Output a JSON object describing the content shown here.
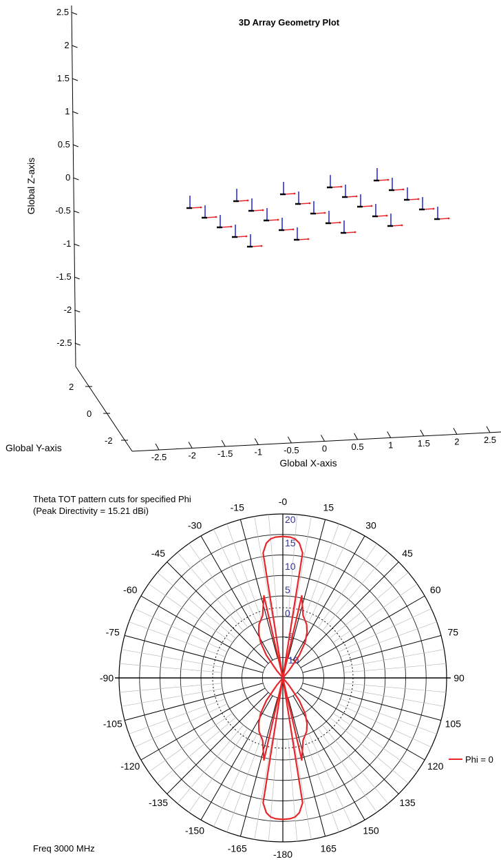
{
  "chart_data": [
    {
      "type": "scatter",
      "subtype": "3d-array-geometry",
      "title": "3D Array Geometry Plot",
      "xlabel": "Global X-axis",
      "ylabel": "Global Y-axis",
      "zlabel": "Global Z-axis",
      "xlim": [
        -2.5,
        2.5
      ],
      "ylim": [
        -2,
        2
      ],
      "zlim": [
        -2.5,
        2.5
      ],
      "x_ticks": [
        "-2.5",
        "-2",
        "-1.5",
        "-1",
        "-0.5",
        "0",
        "0.5",
        "1",
        "1.5",
        "2",
        "2.5"
      ],
      "y_ticks": [
        "-2",
        "0",
        "2"
      ],
      "z_ticks": [
        "2.5",
        "2",
        "1.5",
        "1",
        "0.5",
        "0",
        "-0.5",
        "-1",
        "-1.5",
        "-2",
        "-2.5"
      ],
      "grid": false,
      "element_count": 25,
      "elements": [
        {
          "col": 0,
          "row": 0
        },
        {
          "col": 1,
          "row": 0
        },
        {
          "col": 2,
          "row": 0
        },
        {
          "col": 3,
          "row": 0
        },
        {
          "col": 4,
          "row": 0
        },
        {
          "col": 0,
          "row": 1
        },
        {
          "col": 1,
          "row": 1
        },
        {
          "col": 2,
          "row": 1
        },
        {
          "col": 3,
          "row": 1
        },
        {
          "col": 4,
          "row": 1
        },
        {
          "col": 0,
          "row": 2
        },
        {
          "col": 1,
          "row": 2
        },
        {
          "col": 2,
          "row": 2
        },
        {
          "col": 3,
          "row": 2
        },
        {
          "col": 4,
          "row": 2
        },
        {
          "col": 0,
          "row": 3
        },
        {
          "col": 1,
          "row": 3
        },
        {
          "col": 2,
          "row": 3
        },
        {
          "col": 3,
          "row": 3
        },
        {
          "col": 4,
          "row": 3
        },
        {
          "col": 0,
          "row": 4
        },
        {
          "col": 1,
          "row": 4
        },
        {
          "col": 2,
          "row": 4
        },
        {
          "col": 3,
          "row": 4
        },
        {
          "col": 4,
          "row": 4
        }
      ],
      "colors": {
        "z_axis_marker": "#1f1fd6",
        "x_axis_marker": "#e8252a",
        "base_marker": "#000000"
      }
    },
    {
      "type": "line",
      "subtype": "polar",
      "title_line1": "Theta TOT pattern cuts for specified Phi",
      "title_line2": "(Peak Directivity = 15.21 dBi)",
      "footer": "Freq 3000 MHz",
      "angle_labels": [
        {
          "deg": 0,
          "text": "-0"
        },
        {
          "deg": 15,
          "text": "15"
        },
        {
          "deg": 30,
          "text": "30"
        },
        {
          "deg": 45,
          "text": "45"
        },
        {
          "deg": 60,
          "text": "60"
        },
        {
          "deg": 75,
          "text": "75"
        },
        {
          "deg": 90,
          "text": "90"
        },
        {
          "deg": 105,
          "text": "105"
        },
        {
          "deg": 120,
          "text": "120"
        },
        {
          "deg": 135,
          "text": "135"
        },
        {
          "deg": 150,
          "text": "150"
        },
        {
          "deg": 165,
          "text": "165"
        },
        {
          "deg": 180,
          "text": "-180"
        },
        {
          "deg": -165,
          "text": "-165"
        },
        {
          "deg": -150,
          "text": "-150"
        },
        {
          "deg": -135,
          "text": "-135"
        },
        {
          "deg": -120,
          "text": "-120"
        },
        {
          "deg": -105,
          "text": "-105"
        },
        {
          "deg": -90,
          "text": "-90"
        },
        {
          "deg": -75,
          "text": "-75"
        },
        {
          "deg": -60,
          "text": "-60"
        },
        {
          "deg": -45,
          "text": "-45"
        },
        {
          "deg": -30,
          "text": "-30"
        },
        {
          "deg": -15,
          "text": "-15"
        }
      ],
      "radial_labels": [
        "20",
        "15",
        "10",
        "5",
        "0",
        "-5",
        "-10"
      ],
      "rlim": [
        -15,
        20
      ],
      "reference_ring_db": 0,
      "series": [
        {
          "name": "Phi = 0",
          "color": "#e8252a",
          "theta_deg": [
            -9,
            -7,
            -5,
            -3,
            0,
            3,
            5,
            7,
            9,
            -13,
            -18,
            -24,
            -28,
            -32,
            -36,
            -40,
            13,
            18,
            24,
            28,
            32,
            36,
            40
          ],
          "r_db": [
            12,
            14,
            14.8,
            15.1,
            15.21,
            15.1,
            14.8,
            14,
            12,
            3,
            -1,
            -2.5,
            -4,
            -6,
            -9,
            -13,
            3,
            -1,
            -2.5,
            -4,
            -6,
            -9,
            -13
          ],
          "mirror_back_lobe": true
        }
      ],
      "legend": {
        "position": "right",
        "entries": [
          "Phi = 0"
        ]
      }
    }
  ]
}
